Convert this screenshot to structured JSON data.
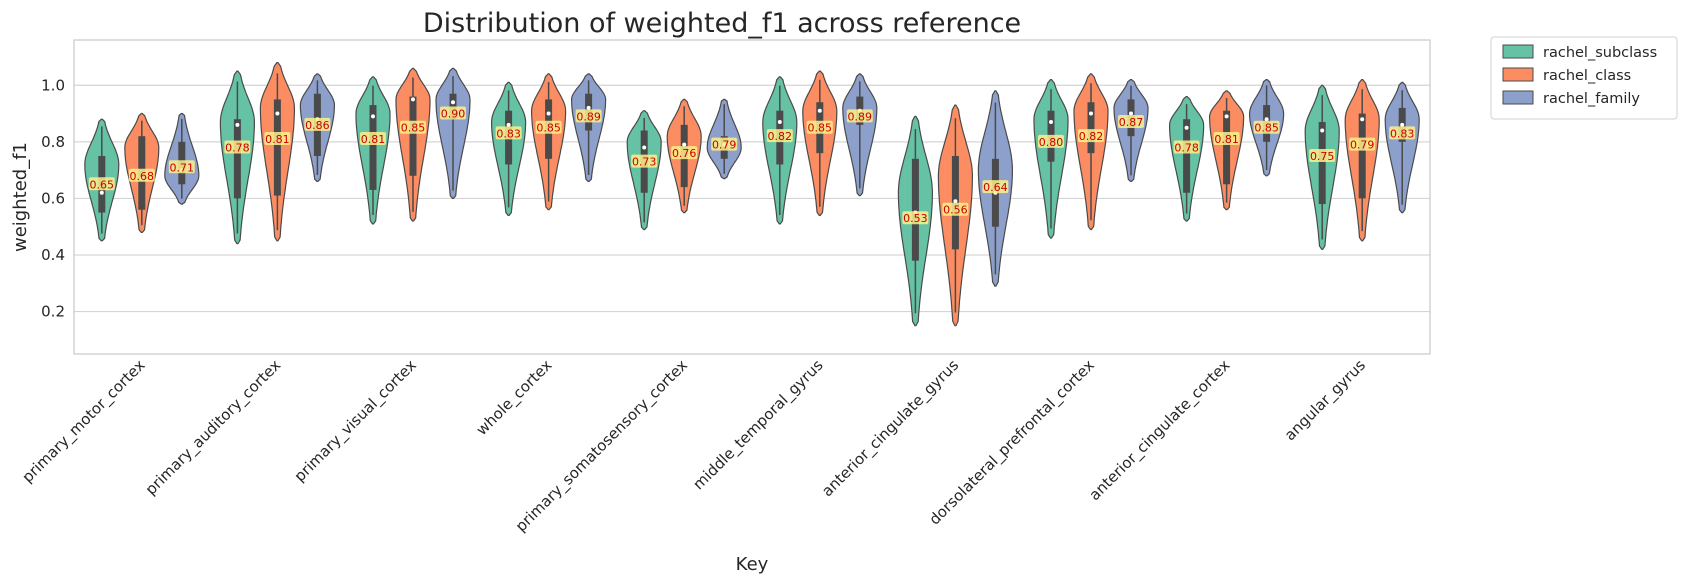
{
  "chart_data": {
    "type": "violin",
    "title": "Distribution of weighted_f1 across reference",
    "xlabel": "Key",
    "ylabel": "weighted_f1",
    "ylim": [
      0.05,
      1.16
    ],
    "yticks": [
      0.2,
      0.4,
      0.6,
      0.8,
      1.0
    ],
    "ytick_labels": [
      "0.2",
      "0.4",
      "0.6",
      "0.8",
      "1.0"
    ],
    "grid": true,
    "legend_position": "outside-top-right",
    "categories": [
      "primary_motor_cortex",
      "primary_auditory_cortex",
      "primary_visual_cortex",
      "whole_cortex",
      "primary_somatosensory_cortex",
      "middle_temporal_gyrus",
      "anterior_cingulate_gyrus",
      "dorsolateral_prefrontal_cortex",
      "anterior_cingulate_cortex",
      "angular_gyrus"
    ],
    "series": [
      {
        "name": "rachel_subclass",
        "color": "#66c2a5",
        "means": [
          0.65,
          0.78,
          0.81,
          0.83,
          0.73,
          0.82,
          0.53,
          0.8,
          0.78,
          0.75
        ],
        "mean_labels": [
          "0.65",
          "0.78",
          "0.81",
          "0.83",
          "0.73",
          "0.82",
          "0.53",
          "0.80",
          "0.78",
          "0.75"
        ],
        "medians": [
          0.62,
          0.86,
          0.89,
          0.86,
          0.78,
          0.87,
          0.55,
          0.87,
          0.85,
          0.84
        ],
        "q1": [
          0.55,
          0.6,
          0.63,
          0.72,
          0.62,
          0.72,
          0.38,
          0.73,
          0.62,
          0.58
        ],
        "q3": [
          0.75,
          0.88,
          0.93,
          0.91,
          0.84,
          0.91,
          0.74,
          0.91,
          0.88,
          0.87
        ],
        "min": [
          0.45,
          0.44,
          0.51,
          0.54,
          0.49,
          0.51,
          0.15,
          0.46,
          0.52,
          0.42
        ],
        "max": [
          0.88,
          1.05,
          1.03,
          1.01,
          0.91,
          1.03,
          0.89,
          1.02,
          0.96,
          1.0
        ],
        "peak": [
          0.72,
          0.87,
          0.9,
          0.87,
          0.8,
          0.87,
          0.62,
          0.88,
          0.86,
          0.84
        ]
      },
      {
        "name": "rachel_class",
        "color": "#fc8d62",
        "means": [
          0.68,
          0.81,
          0.85,
          0.85,
          0.76,
          0.85,
          0.56,
          0.82,
          0.81,
          0.79
        ],
        "mean_labels": [
          "0.68",
          "0.81",
          "0.85",
          "0.85",
          "0.76",
          "0.85",
          "0.56",
          "0.82",
          "0.81",
          "0.79"
        ],
        "medians": [
          0.67,
          0.9,
          0.95,
          0.9,
          0.79,
          0.91,
          0.59,
          0.9,
          0.89,
          0.88
        ],
        "q1": [
          0.56,
          0.61,
          0.68,
          0.74,
          0.64,
          0.76,
          0.42,
          0.76,
          0.65,
          0.6
        ],
        "q3": [
          0.82,
          0.95,
          0.96,
          0.95,
          0.86,
          0.94,
          0.75,
          0.94,
          0.91,
          0.9
        ],
        "min": [
          0.48,
          0.45,
          0.52,
          0.56,
          0.55,
          0.54,
          0.15,
          0.49,
          0.56,
          0.45
        ],
        "max": [
          0.9,
          1.08,
          1.06,
          1.04,
          0.95,
          1.05,
          0.93,
          1.04,
          0.98,
          1.02
        ],
        "peak": [
          0.78,
          0.92,
          0.95,
          0.91,
          0.82,
          0.91,
          0.68,
          0.91,
          0.89,
          0.88
        ]
      },
      {
        "name": "rachel_family",
        "color": "#8da0cb",
        "means": [
          0.71,
          0.86,
          0.9,
          0.89,
          0.79,
          0.89,
          0.64,
          0.87,
          0.85,
          0.83
        ],
        "mean_labels": [
          "0.71",
          "0.86",
          "0.90",
          "0.89",
          "0.79",
          "0.89",
          "0.64",
          "0.87",
          "0.85",
          "0.83"
        ],
        "medians": [
          0.7,
          0.88,
          0.94,
          0.92,
          0.79,
          0.91,
          0.62,
          0.9,
          0.88,
          0.86
        ],
        "q1": [
          0.65,
          0.75,
          0.88,
          0.84,
          0.74,
          0.86,
          0.5,
          0.82,
          0.8,
          0.8
        ],
        "q3": [
          0.8,
          0.97,
          0.97,
          0.97,
          0.82,
          0.96,
          0.74,
          0.95,
          0.93,
          0.92
        ],
        "min": [
          0.58,
          0.66,
          0.6,
          0.66,
          0.67,
          0.61,
          0.29,
          0.66,
          0.68,
          0.55
        ],
        "max": [
          0.9,
          1.04,
          1.06,
          1.04,
          0.95,
          1.04,
          0.98,
          1.02,
          1.02,
          1.01
        ],
        "peak": [
          0.68,
          0.93,
          0.95,
          0.95,
          0.78,
          0.92,
          0.7,
          0.92,
          0.9,
          0.88
        ]
      }
    ]
  }
}
